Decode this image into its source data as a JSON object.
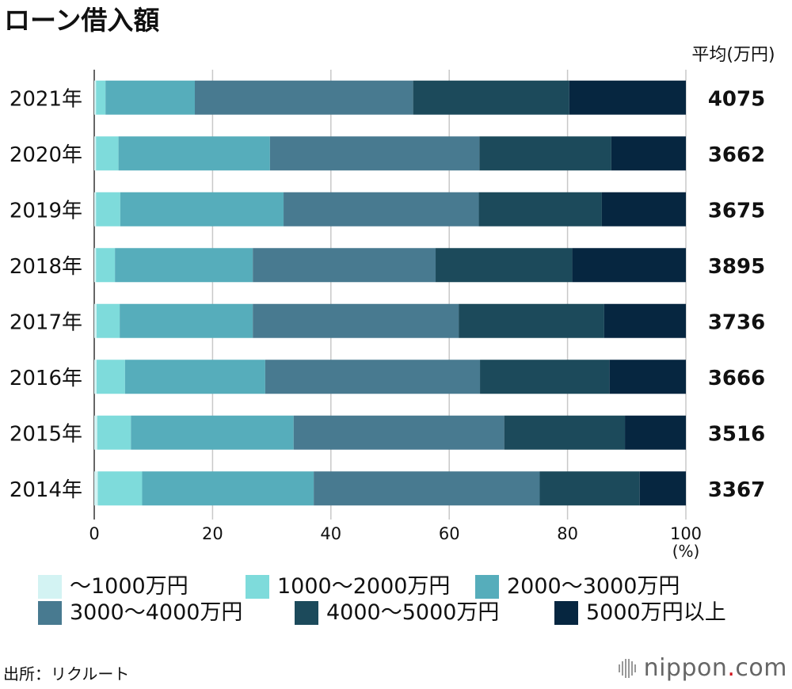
{
  "chart_data": {
    "type": "bar",
    "orientation": "horizontal",
    "stacked": true,
    "title": "ローン借入額",
    "unit_label": "平均(万円)",
    "x_unit": "(%)",
    "xlim": [
      0,
      100
    ],
    "xticks": [
      0,
      20,
      40,
      60,
      80,
      100
    ],
    "grid": true,
    "legend_position": "bottom",
    "categories": [
      "2021年",
      "2020年",
      "2019年",
      "2018年",
      "2017年",
      "2016年",
      "2015年",
      "2014年"
    ],
    "averages": [
      "4075",
      "3662",
      "3675",
      "3895",
      "3736",
      "3666",
      "3516",
      "3367"
    ],
    "series": [
      {
        "name": "〜1000万円",
        "color": "#d3f3f3",
        "values": [
          0.3,
          0.3,
          0.3,
          0.3,
          0.4,
          0.4,
          0.5,
          0.6
        ]
      },
      {
        "name": "1000〜2000万円",
        "color": "#7edbdb",
        "values": [
          1.6,
          3.8,
          4.1,
          3.2,
          3.9,
          4.8,
          5.7,
          7.5
        ]
      },
      {
        "name": "2000〜3000万円",
        "color": "#56adbb",
        "values": [
          15.1,
          25.6,
          27.6,
          23.3,
          22.5,
          23.7,
          27.5,
          29.0
        ]
      },
      {
        "name": "3000〜4000万円",
        "color": "#487a90",
        "values": [
          36.9,
          35.4,
          33.0,
          30.9,
          34.8,
          36.3,
          35.6,
          38.2
        ]
      },
      {
        "name": "4000〜5000万円",
        "color": "#1c4a5b",
        "values": [
          26.4,
          22.3,
          20.8,
          23.1,
          24.6,
          21.9,
          20.4,
          16.9
        ]
      },
      {
        "name": "5000万円以上",
        "color": "#062640",
        "values": [
          19.7,
          12.6,
          14.2,
          19.2,
          13.8,
          12.9,
          10.3,
          7.8
        ]
      }
    ]
  },
  "source": "出所：リクルート",
  "logo": {
    "name": "nippon",
    "dot": ".",
    "suffix": "com",
    "icon": "nippon-logo-icon"
  }
}
